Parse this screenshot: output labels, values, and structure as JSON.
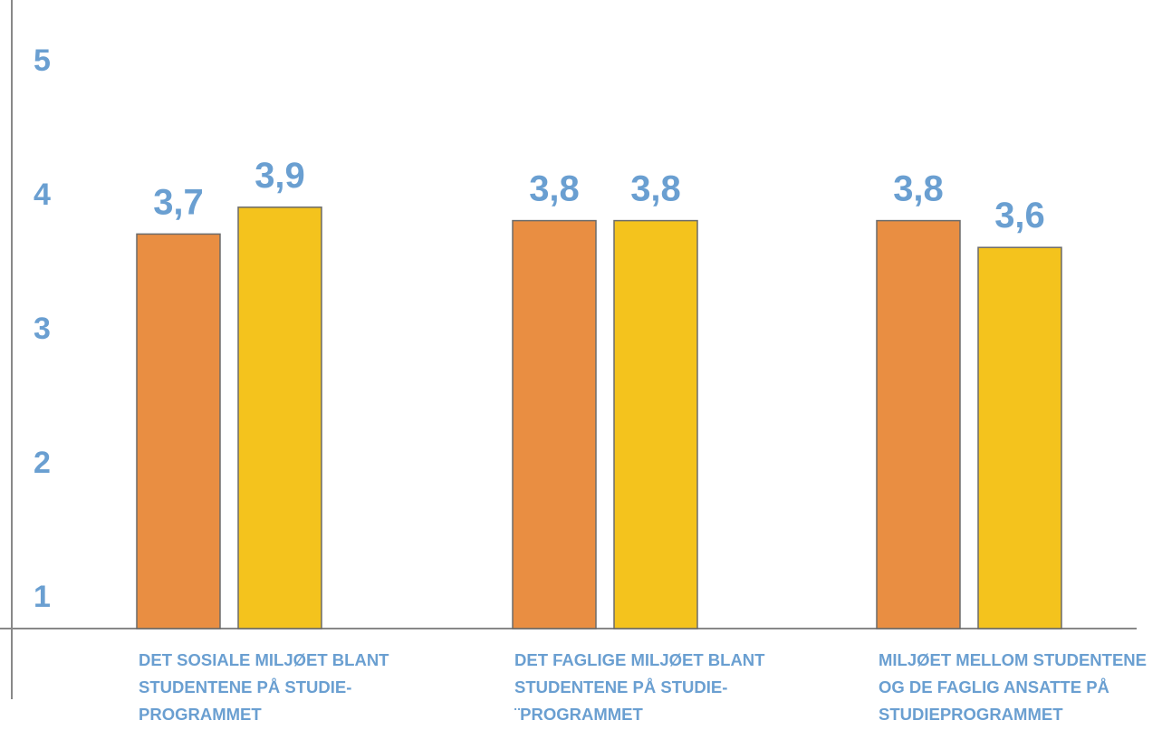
{
  "chart_data": {
    "type": "bar",
    "title": "",
    "xlabel": "",
    "ylabel": "",
    "ylim": [
      1,
      5
    ],
    "yticks": [
      1,
      2,
      3,
      4,
      5
    ],
    "ytick_labels": [
      "1",
      "2",
      "3",
      "4",
      "5"
    ],
    "grid": false,
    "legend": false,
    "categories": [
      [
        "DET SOSIALE MILJØET BLANT",
        "STUDENTENE PÅ STUDIE-",
        "PROGRAMMET"
      ],
      [
        "DET FAGLIGE MILJØET BLANT",
        "STUDENTENE PÅ STUDIE-",
        "¨PROGRAMMET"
      ],
      [
        "MILJØET MELLOM STUDENTENE",
        "OG DE FAGLIG ANSATTE PÅ",
        "STUDIEPROGRAMMET"
      ]
    ],
    "series": [
      {
        "color": "#E98E42",
        "values": [
          3.7,
          3.8,
          3.8
        ],
        "value_labels": [
          "3,7",
          "3,8",
          "3,8"
        ]
      },
      {
        "color": "#F4C31D",
        "values": [
          3.9,
          3.8,
          3.6
        ],
        "value_labels": [
          "3,9",
          "3,8",
          "3,6"
        ]
      }
    ],
    "colors": {
      "label_text": "#6A9FD1",
      "axis": "#888888",
      "bar_outline": "#6b6b6b"
    }
  }
}
